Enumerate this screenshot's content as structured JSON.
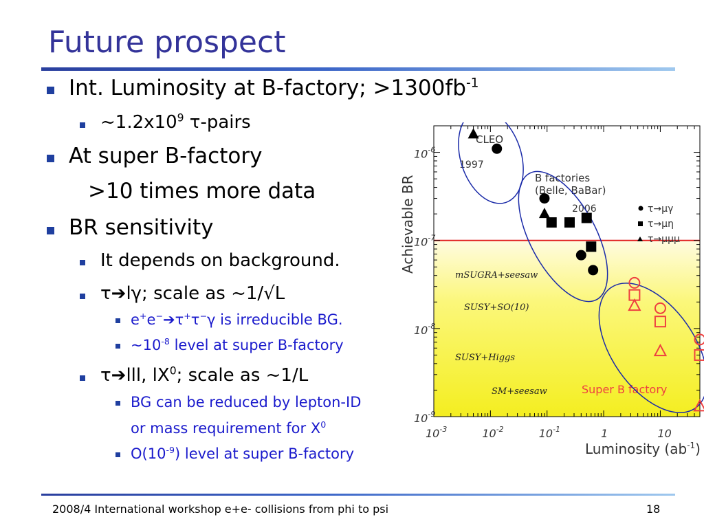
{
  "title": "Future prospect",
  "bullets": {
    "b1": {
      "text": "Int. Luminosity at B-factory; >1300fb",
      "sup": "-1"
    },
    "b1_1": {
      "pre": "~1.2x10",
      "sup": "9",
      "post": " τ-pairs"
    },
    "b2": {
      "text": "At super B-factory"
    },
    "b2_cont": {
      "text": ">10 times more data"
    },
    "b3": {
      "text": "BR sensitivity"
    },
    "b3_1": {
      "text": "It depends on background."
    },
    "b3_2": {
      "text": "τ➔lγ; scale as ~1/√L"
    },
    "b3_2_1": {
      "pre": "e",
      "sup1": "+",
      "mid1": "e",
      "sup2": "−",
      "mid2": "➔τ",
      "sup3": "+",
      "mid3": "τ",
      "sup4": "−",
      "post": "γ is irreducible BG."
    },
    "b3_2_2": {
      "pre": "~10",
      "sup": "-8",
      "post": " level at super B-factory"
    },
    "b3_3": {
      "pre": "τ➔lll, lX",
      "sup": "0",
      "post": "; scale as ~1/L"
    },
    "b3_3_1": {
      "line1": "BG can be reduced by lepton-ID",
      "line2_pre": "or mass requirement for X",
      "line2_sup": "0"
    },
    "b3_3_2": {
      "pre": "O(10",
      "sup": "-9",
      "post": ") level at super B-factory"
    }
  },
  "chart_data": {
    "type": "scatter",
    "xscale": "log",
    "yscale": "log",
    "xlim": [
      0.001,
      50
    ],
    "ylim": [
      1e-09,
      2e-06
    ],
    "xlabel": "Luminosity (ab-1)",
    "ylabel": "Achievable BR",
    "x_ticks": [
      "10-3",
      "10-2",
      "10-1",
      "1",
      "10"
    ],
    "y_ticks": [
      "10-6",
      "10-7",
      "10-8",
      "10-9"
    ],
    "threshold_line": 1e-07,
    "legend": [
      {
        "symbol": "circle",
        "label": "τ→μγ"
      },
      {
        "symbol": "square",
        "label": "τ→μη"
      },
      {
        "symbol": "triangle",
        "label": "τ→μμμ"
      }
    ],
    "annotations": {
      "cleo": "CLEO",
      "year_1997": "1997",
      "bfactories_line1": "B factories",
      "bfactories_line2": "(Belle, BaBar)",
      "year_2006": "2006",
      "superb": "Super B factory"
    },
    "models": [
      "mSUGRA+seesaw",
      "SUSY+SO(10)",
      "SUSY+Higgs",
      "SM+seesaw"
    ],
    "series": [
      {
        "name": "CLEO",
        "points": [
          {
            "symbol": "triangle",
            "x": 0.005,
            "y": 1.6e-06
          },
          {
            "symbol": "circle",
            "x": 0.013,
            "y": 1.1e-06
          }
        ]
      },
      {
        "name": "B factories",
        "points": [
          {
            "symbol": "circle",
            "x": 0.09,
            "y": 3e-07
          },
          {
            "symbol": "triangle",
            "x": 0.09,
            "y": 2e-07
          },
          {
            "symbol": "square",
            "x": 0.12,
            "y": 1.6e-07
          },
          {
            "symbol": "square",
            "x": 0.25,
            "y": 1.6e-07
          },
          {
            "symbol": "square",
            "x": 0.5,
            "y": 1.8e-07
          },
          {
            "symbol": "square",
            "x": 0.6,
            "y": 8.5e-08
          },
          {
            "symbol": "circle",
            "x": 0.4,
            "y": 6.8e-08
          },
          {
            "symbol": "circle",
            "x": 0.65,
            "y": 4.6e-08
          }
        ]
      },
      {
        "name": "Super B factory",
        "points": [
          {
            "symbol": "circle",
            "x": 3.5,
            "y": 3.3e-08
          },
          {
            "symbol": "square",
            "x": 3.5,
            "y": 2.4e-08
          },
          {
            "symbol": "triangle",
            "x": 3.5,
            "y": 1.8e-08
          },
          {
            "symbol": "circle",
            "x": 10,
            "y": 1.7e-08
          },
          {
            "symbol": "square",
            "x": 10,
            "y": 1.2e-08
          },
          {
            "symbol": "triangle",
            "x": 10,
            "y": 5.5e-09
          },
          {
            "symbol": "circle",
            "x": 50,
            "y": 7.5e-09
          },
          {
            "symbol": "square",
            "x": 50,
            "y": 5e-09
          },
          {
            "symbol": "triangle",
            "x": 50,
            "y": 1.3e-09
          }
        ]
      }
    ],
    "colors": {
      "band": "#f6f200",
      "redline": "#e02020",
      "ellipse": "#1a2aa8",
      "superb": "#ee4040"
    }
  },
  "footer": {
    "left": "2008/4 International workshop e+e- collisions from phi to psi",
    "right": "18"
  }
}
